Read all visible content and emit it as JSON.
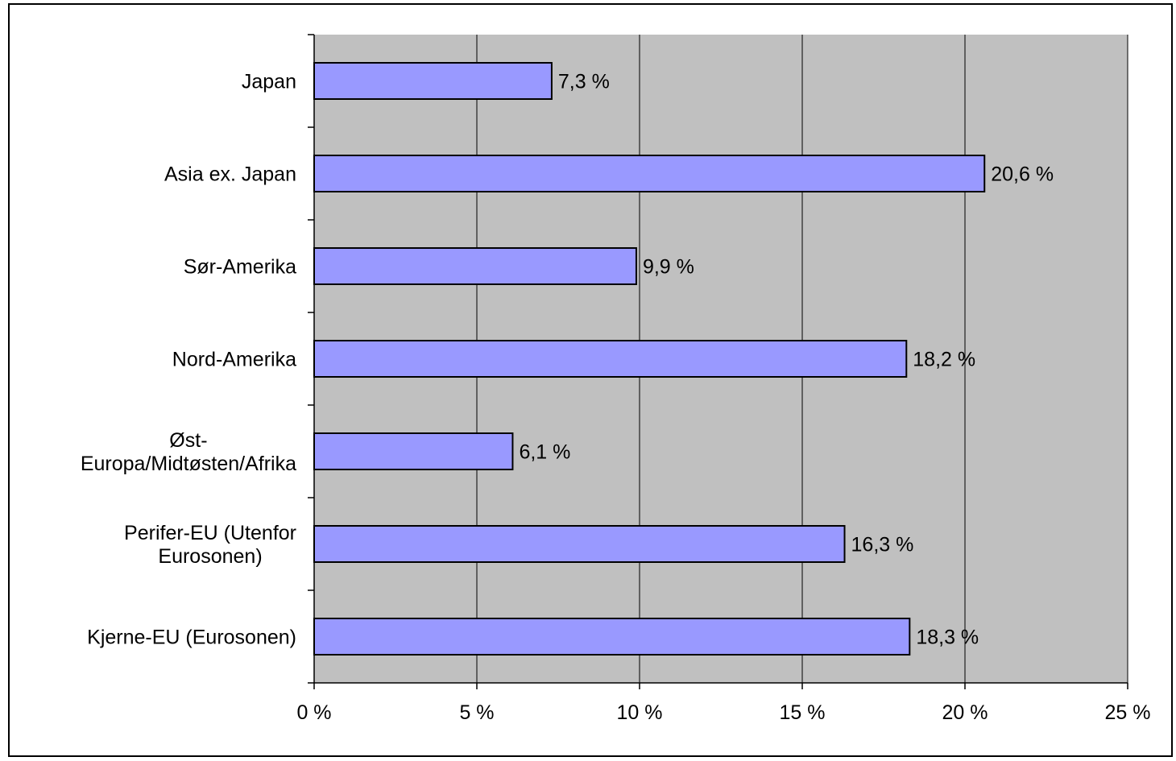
{
  "chart_data": {
    "type": "bar",
    "orientation": "horizontal",
    "categories": [
      "Japan",
      "Asia ex. Japan",
      "Sør-Amerika",
      "Nord-Amerika",
      "Øst-Europa/Midtøsten/Afrika",
      "Perifer-EU (Utenfor Eurosonen)",
      "Kjerne-EU (Eurosonen)"
    ],
    "category_label_lines": [
      [
        "Japan"
      ],
      [
        "Asia ex. Japan"
      ],
      [
        "Sør-Amerika"
      ],
      [
        "Nord-Amerika"
      ],
      [
        "Øst-",
        "Europa/Midtøsten/Afrika"
      ],
      [
        "Perifer-EU (Utenfor",
        "Eurosonen)"
      ],
      [
        "Kjerne-EU (Eurosonen)"
      ]
    ],
    "values": [
      7.3,
      20.6,
      9.9,
      18.2,
      6.1,
      16.3,
      18.3
    ],
    "data_labels": [
      "7,3 %",
      "20,6 %",
      "9,9 %",
      "18,2 %",
      "6,1 %",
      "16,3 %",
      "18,3 %"
    ],
    "xlim": [
      0,
      25
    ],
    "xticks": [
      0,
      5,
      10,
      15,
      20,
      25
    ],
    "xtick_labels": [
      "0 %",
      "5 %",
      "10 %",
      "15 %",
      "20 %",
      "25 %"
    ],
    "grid": true,
    "legend": "none",
    "title": "",
    "xlabel": "",
    "ylabel": "",
    "colors": {
      "bar_fill": "#9999ff",
      "plot_background": "#c0c0c0",
      "gridline": "#000000",
      "bar_stroke": "#000000"
    }
  }
}
